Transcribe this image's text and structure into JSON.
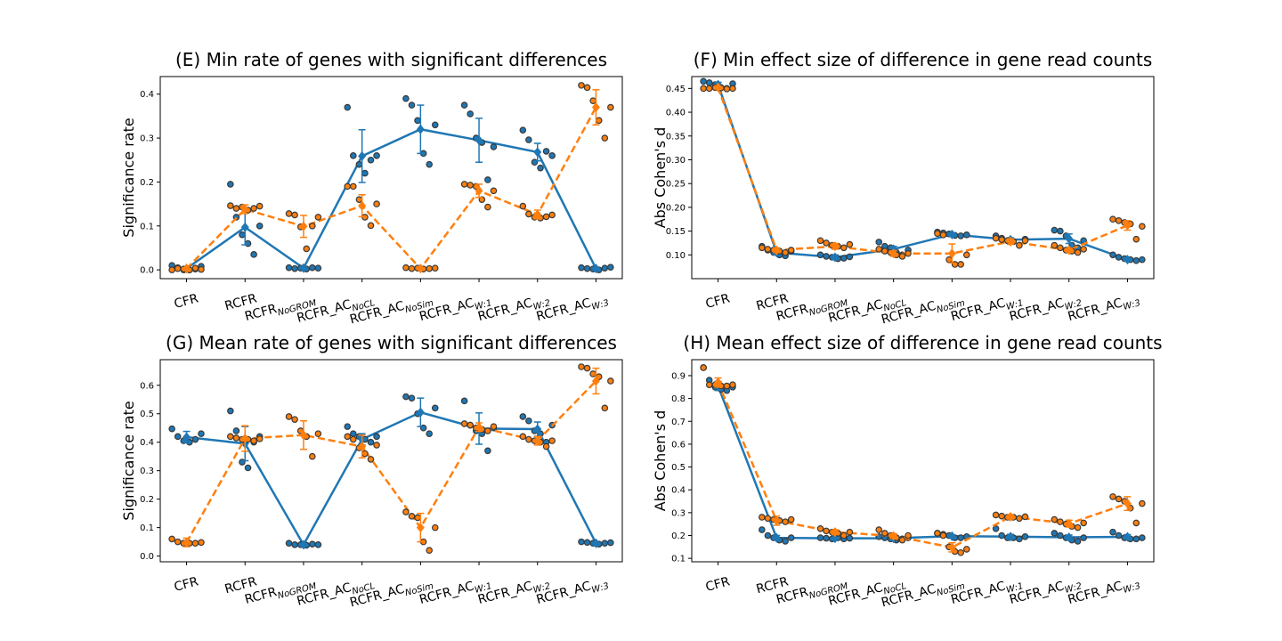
{
  "colors": {
    "blue": "#1f77b4",
    "orange": "#ff7f0e",
    "point_edge": "#3a3a3a"
  },
  "chart_data": [
    {
      "id": "E",
      "type": "line",
      "title": "(E) Min rate of genes with significant differences",
      "xlabel": "",
      "ylabel": "Significance rate",
      "categories": [
        {
          "base": "CFR",
          "sub": ""
        },
        {
          "base": "RCFR",
          "sub": ""
        },
        {
          "base": "RCFR",
          "sub": "NoGROM"
        },
        {
          "base": "RCFR_AC",
          "sub": "NoCL"
        },
        {
          "base": "RCFR_AC",
          "sub": "NoSim"
        },
        {
          "base": "RCFR_AC",
          "sub": "W:1"
        },
        {
          "base": "RCFR_AC",
          "sub": "W:2"
        },
        {
          "base": "RCFR_AC",
          "sub": "W:3"
        }
      ],
      "ylim": [
        -0.02,
        0.44
      ],
      "yticks": [
        0.0,
        0.1,
        0.2,
        0.3,
        0.4
      ],
      "ytick_labels": [
        "0.0",
        "0.1",
        "0.2",
        "0.3",
        "0.4"
      ],
      "grid": false,
      "series": [
        {
          "color": "blue",
          "dash": false,
          "values": [
            0.003,
            0.097,
            0.004,
            0.259,
            0.32,
            0.295,
            0.268,
            0.003
          ],
          "err": [
            0,
            0.04,
            0,
            0.06,
            0.055,
            0.05,
            0.02,
            0
          ],
          "points": [
            [
              0.01,
              0.005,
              0.0,
              0.0,
              0.002,
              0.008
            ],
            [
              0.195,
              0.12,
              0.08,
              0.06,
              0.035,
              0.1
            ],
            [
              0.005,
              0.003,
              0.004,
              0.002,
              0.005,
              0.004
            ],
            [
              0.37,
              0.26,
              0.24,
              0.22,
              0.25,
              0.26
            ],
            [
              0.39,
              0.375,
              0.34,
              0.265,
              0.24,
              0.33
            ],
            [
              0.375,
              0.355,
              0.3,
              0.29,
              0.205,
              0.28
            ],
            [
              0.318,
              0.296,
              0.245,
              0.232,
              0.27,
              0.26
            ],
            [
              0.005,
              0.003,
              0.002,
              0.0,
              0.004,
              0.006
            ]
          ]
        },
        {
          "color": "orange",
          "dash": true,
          "values": [
            0.003,
            0.138,
            0.099,
            0.146,
            0.003,
            0.18,
            0.126,
            0.37
          ],
          "err": [
            0,
            0.01,
            0.025,
            0.025,
            0,
            0.015,
            0.01,
            0.04
          ],
          "points": [
            [
              0.0,
              0.003,
              0.002,
              0.0,
              0.004,
              0.001
            ],
            [
              0.146,
              0.14,
              0.143,
              0.136,
              0.14,
              0.145
            ],
            [
              0.128,
              0.125,
              0.098,
              0.048,
              0.1,
              0.12
            ],
            [
              0.19,
              0.19,
              0.16,
              0.12,
              0.101,
              0.15
            ],
            [
              0.005,
              0.003,
              0.004,
              0.002,
              0.003,
              0.004
            ],
            [
              0.195,
              0.193,
              0.19,
              0.16,
              0.143,
              0.18
            ],
            [
              0.145,
              0.127,
              0.12,
              0.118,
              0.121,
              0.125
            ],
            [
              0.42,
              0.415,
              0.385,
              0.34,
              0.3,
              0.37
            ]
          ]
        }
      ]
    },
    {
      "id": "F",
      "type": "line",
      "title": "(F) Min effect size of difference in gene read counts",
      "xlabel": "",
      "ylabel": "Abs Cohen's d",
      "categories": [
        {
          "base": "CFR",
          "sub": ""
        },
        {
          "base": "RCFR",
          "sub": ""
        },
        {
          "base": "RCFR",
          "sub": "NoGROM"
        },
        {
          "base": "RCFR_AC",
          "sub": "NoCL"
        },
        {
          "base": "RCFR_AC",
          "sub": "NoSim"
        },
        {
          "base": "RCFR_AC",
          "sub": "W:1"
        },
        {
          "base": "RCFR_AC",
          "sub": "W:2"
        },
        {
          "base": "RCFR_AC",
          "sub": "W:3"
        }
      ],
      "ylim": [
        0.05,
        0.475
      ],
      "yticks": [
        0.1,
        0.15,
        0.2,
        0.25,
        0.3,
        0.35,
        0.4,
        0.45
      ],
      "ytick_labels": [
        "0.10",
        "0.15",
        "0.20",
        "0.25",
        "0.30",
        "0.35",
        "0.40",
        "0.45"
      ],
      "grid": false,
      "series": [
        {
          "color": "blue",
          "dash": false,
          "values": [
            0.458,
            0.105,
            0.095,
            0.112,
            0.143,
            0.132,
            0.134,
            0.09
          ],
          "err": [
            0.005,
            0.005,
            0.005,
            0.006,
            0.004,
            0.004,
            0.01,
            0.003
          ],
          "points": [
            [
              0.465,
              0.462,
              0.458,
              0.452,
              0.45,
              0.46
            ],
            [
              0.118,
              0.11,
              0.105,
              0.1,
              0.098,
              0.108
            ],
            [
              0.1,
              0.097,
              0.095,
              0.092,
              0.093,
              0.096
            ],
            [
              0.127,
              0.118,
              0.115,
              0.105,
              0.1,
              0.11
            ],
            [
              0.148,
              0.146,
              0.144,
              0.141,
              0.14,
              0.142
            ],
            [
              0.14,
              0.135,
              0.13,
              0.128,
              0.12,
              0.133
            ],
            [
              0.152,
              0.15,
              0.14,
              0.12,
              0.115,
              0.13
            ],
            [
              0.1,
              0.095,
              0.092,
              0.09,
              0.088,
              0.09
            ]
          ]
        },
        {
          "color": "orange",
          "dash": true,
          "values": [
            0.452,
            0.11,
            0.118,
            0.103,
            0.103,
            0.128,
            0.11,
            0.162
          ],
          "err": [
            0.003,
            0.005,
            0.006,
            0.006,
            0.02,
            0.006,
            0.004,
            0.01
          ],
          "points": [
            [
              0.45,
              0.45,
              0.452,
              0.451,
              0.449,
              0.45
            ],
            [
              0.115,
              0.112,
              0.11,
              0.108,
              0.105,
              0.11
            ],
            [
              0.13,
              0.125,
              0.12,
              0.118,
              0.115,
              0.122
            ],
            [
              0.112,
              0.108,
              0.105,
              0.1,
              0.097,
              0.103
            ],
            [
              0.145,
              0.142,
              0.09,
              0.08,
              0.08,
              0.1
            ],
            [
              0.135,
              0.132,
              0.13,
              0.128,
              0.12,
              0.13
            ],
            [
              0.12,
              0.115,
              0.11,
              0.108,
              0.105,
              0.112
            ],
            [
              0.175,
              0.172,
              0.168,
              0.165,
              0.133,
              0.16
            ]
          ]
        }
      ]
    },
    {
      "id": "G",
      "type": "line",
      "title": "(G) Mean rate of genes with significant differences",
      "xlabel": "",
      "ylabel": "Significance rate",
      "categories": [
        {
          "base": "CFR",
          "sub": ""
        },
        {
          "base": "RCFR",
          "sub": ""
        },
        {
          "base": "RCFR",
          "sub": "NoGROM"
        },
        {
          "base": "RCFR_AC",
          "sub": "NoCL"
        },
        {
          "base": "RCFR_AC",
          "sub": "NoSim"
        },
        {
          "base": "RCFR_AC",
          "sub": "W:1"
        },
        {
          "base": "RCFR_AC",
          "sub": "W:2"
        },
        {
          "base": "RCFR_AC",
          "sub": "W:3"
        }
      ],
      "ylim": [
        -0.02,
        0.69
      ],
      "yticks": [
        0.0,
        0.1,
        0.2,
        0.3,
        0.4,
        0.5,
        0.6
      ],
      "ytick_labels": [
        "0.0",
        "0.1",
        "0.2",
        "0.3",
        "0.4",
        "0.5",
        "0.6"
      ],
      "grid": false,
      "series": [
        {
          "color": "blue",
          "dash": false,
          "values": [
            0.418,
            0.395,
            0.04,
            0.41,
            0.505,
            0.448,
            0.446,
            0.045
          ],
          "err": [
            0.02,
            0.06,
            0.003,
            0.02,
            0.05,
            0.055,
            0.025,
            0.003
          ],
          "points": [
            [
              0.447,
              0.42,
              0.405,
              0.4,
              0.41,
              0.43
            ],
            [
              0.51,
              0.44,
              0.33,
              0.31,
              0.4,
              0.42
            ],
            [
              0.045,
              0.04,
              0.04,
              0.038,
              0.042,
              0.04
            ],
            [
              0.455,
              0.43,
              0.42,
              0.41,
              0.4,
              0.42
            ],
            [
              0.56,
              0.555,
              0.5,
              0.45,
              0.43,
              0.52
            ],
            [
              0.545,
              0.46,
              0.44,
              0.43,
              0.37,
              0.45
            ],
            [
              0.49,
              0.475,
              0.44,
              0.43,
              0.4,
              0.46
            ],
            [
              0.05,
              0.048,
              0.045,
              0.042,
              0.045,
              0.047
            ]
          ]
        },
        {
          "color": "orange",
          "dash": true,
          "values": [
            0.048,
            0.413,
            0.425,
            0.385,
            0.1,
            0.453,
            0.405,
            0.615
          ],
          "err": [
            0.015,
            0.045,
            0.05,
            0.04,
            0.05,
            0.015,
            0.015,
            0.045
          ],
          "points": [
            [
              0.06,
              0.05,
              0.045,
              0.045,
              0.045,
              0.048
            ],
            [
              0.42,
              0.415,
              0.41,
              0.41,
              0.405,
              0.412
            ],
            [
              0.49,
              0.48,
              0.44,
              0.42,
              0.35,
              0.43
            ],
            [
              0.42,
              0.41,
              0.38,
              0.36,
              0.34,
              0.39
            ],
            [
              0.155,
              0.14,
              0.135,
              0.05,
              0.02,
              0.1
            ],
            [
              0.465,
              0.46,
              0.45,
              0.445,
              0.44,
              0.455
            ],
            [
              0.42,
              0.41,
              0.405,
              0.4,
              0.385,
              0.405
            ],
            [
              0.665,
              0.66,
              0.64,
              0.63,
              0.52,
              0.615
            ]
          ]
        }
      ]
    },
    {
      "id": "H",
      "type": "line",
      "title": "(H) Mean effect size of difference in gene read counts",
      "xlabel": "",
      "ylabel": "Abs Cohen's d",
      "categories": [
        {
          "base": "CFR",
          "sub": ""
        },
        {
          "base": "RCFR",
          "sub": ""
        },
        {
          "base": "RCFR",
          "sub": "NoGROM"
        },
        {
          "base": "RCFR_AC",
          "sub": "NoCL"
        },
        {
          "base": "RCFR_AC",
          "sub": "NoSim"
        },
        {
          "base": "RCFR_AC",
          "sub": "W:1"
        },
        {
          "base": "RCFR_AC",
          "sub": "W:2"
        },
        {
          "base": "RCFR_AC",
          "sub": "W:3"
        }
      ],
      "ylim": [
        0.085,
        0.97
      ],
      "yticks": [
        0.1,
        0.2,
        0.3,
        0.4,
        0.5,
        0.6,
        0.7,
        0.8,
        0.9
      ],
      "ytick_labels": [
        "0.1",
        "0.2",
        "0.3",
        "0.4",
        "0.5",
        "0.6",
        "0.7",
        "0.8",
        "0.9"
      ],
      "grid": false,
      "series": [
        {
          "color": "blue",
          "dash": false,
          "values": [
            0.855,
            0.19,
            0.188,
            0.188,
            0.197,
            0.195,
            0.192,
            0.194
          ],
          "err": [
            0.02,
            0.01,
            0.005,
            0.005,
            0.005,
            0.01,
            0.01,
            0.01
          ],
          "points": [
            [
              0.935,
              0.88,
              0.85,
              0.84,
              0.835,
              0.85
            ],
            [
              0.225,
              0.2,
              0.19,
              0.18,
              0.175,
              0.19
            ],
            [
              0.19,
              0.188,
              0.185,
              0.19,
              0.185,
              0.188
            ],
            [
              0.195,
              0.19,
              0.185,
              0.18,
              0.185,
              0.19
            ],
            [
              0.21,
              0.205,
              0.2,
              0.19,
              0.19,
              0.195
            ],
            [
              0.23,
              0.2,
              0.19,
              0.19,
              0.185,
              0.195
            ],
            [
              0.21,
              0.2,
              0.19,
              0.18,
              0.175,
              0.19
            ],
            [
              0.215,
              0.2,
              0.19,
              0.185,
              0.185,
              0.19
            ]
          ]
        },
        {
          "color": "orange",
          "dash": true,
          "values": [
            0.87,
            0.265,
            0.215,
            0.198,
            0.148,
            0.282,
            0.252,
            0.34
          ],
          "err": [
            0.02,
            0.02,
            0.01,
            0.01,
            0.02,
            0.01,
            0.015,
            0.03
          ],
          "points": [
            [
              0.935,
              0.86,
              0.86,
              0.855,
              0.855,
              0.86
            ],
            [
              0.28,
              0.275,
              0.27,
              0.265,
              0.26,
              0.27
            ],
            [
              0.23,
              0.22,
              0.215,
              0.21,
              0.2,
              0.215
            ],
            [
              0.225,
              0.21,
              0.2,
              0.19,
              0.18,
              0.2
            ],
            [
              0.21,
              0.2,
              0.15,
              0.13,
              0.125,
              0.14
            ],
            [
              0.29,
              0.285,
              0.28,
              0.28,
              0.275,
              0.282
            ],
            [
              0.27,
              0.26,
              0.25,
              0.24,
              0.235,
              0.255
            ],
            [
              0.37,
              0.36,
              0.35,
              0.32,
              0.255,
              0.34
            ]
          ]
        }
      ]
    }
  ]
}
